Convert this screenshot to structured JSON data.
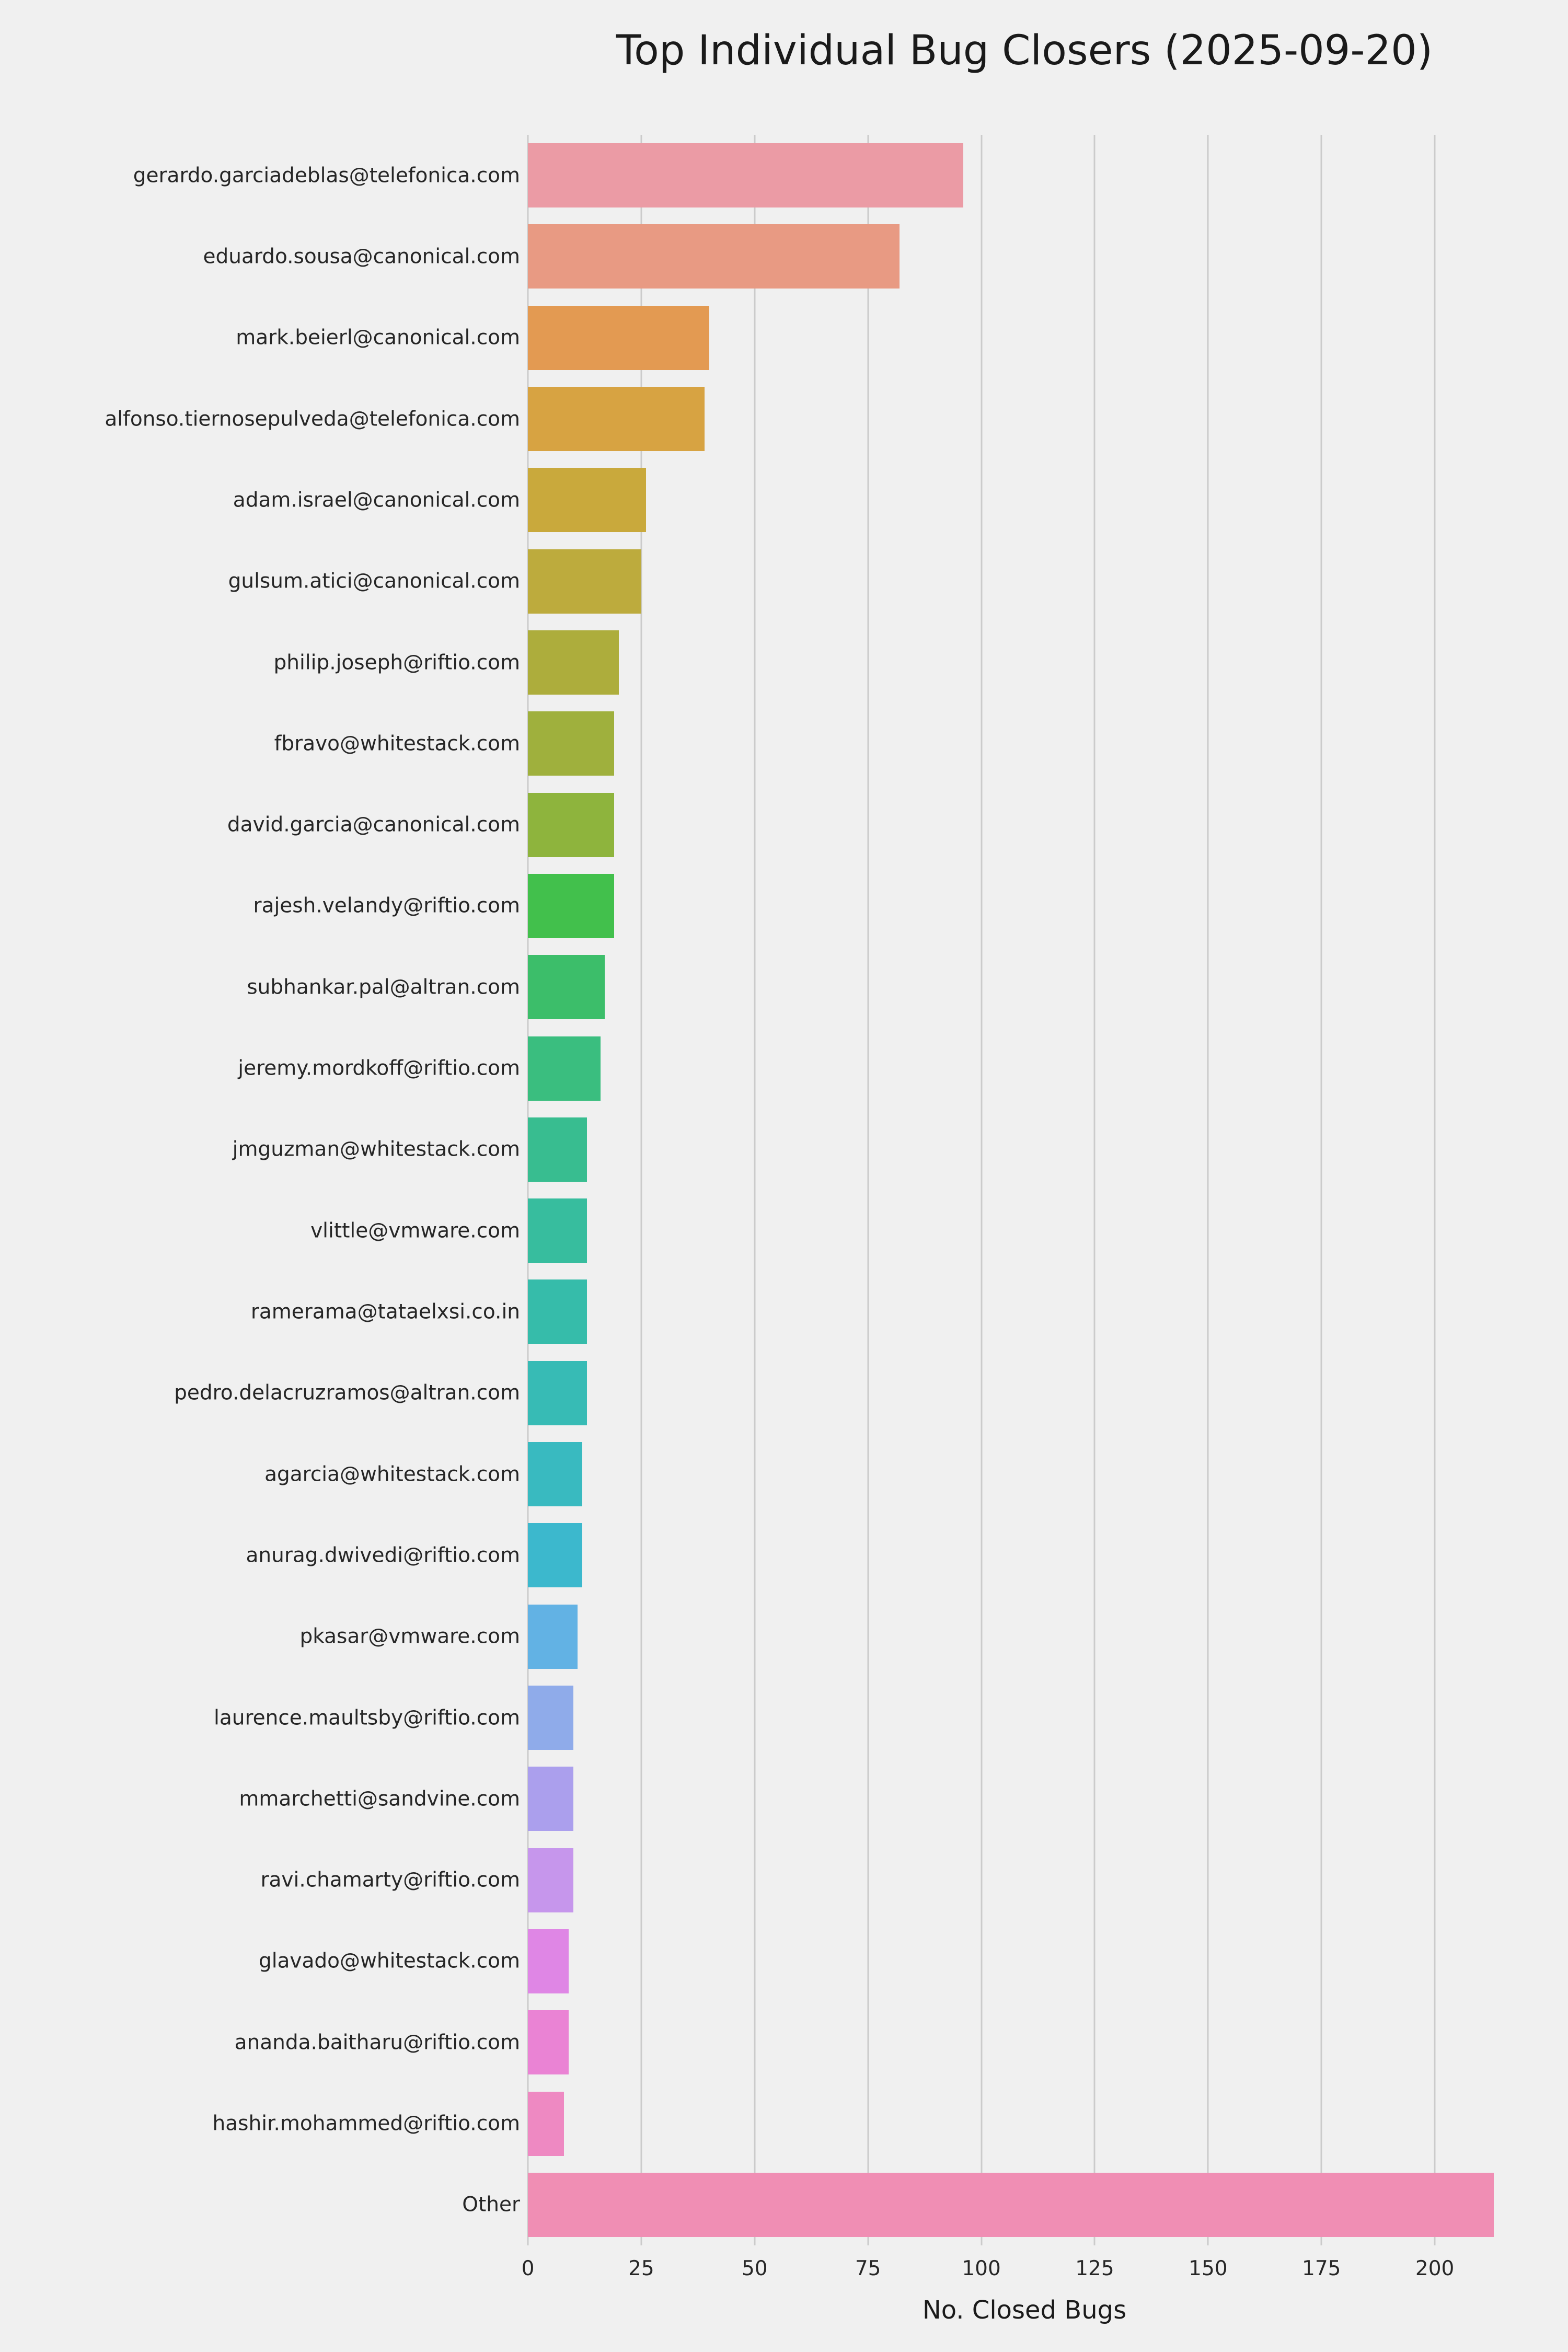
{
  "chart_data": {
    "type": "bar",
    "orientation": "horizontal",
    "title": "Top Individual Bug Closers (2025-09-20)",
    "xlabel": "No. Closed Bugs",
    "ylabel": "",
    "xlim": [
      0,
      219
    ],
    "x_ticks": [
      0,
      25,
      50,
      75,
      100,
      125,
      150,
      175,
      200
    ],
    "grid": true,
    "legend": false,
    "background_color": "#f0f0f0",
    "gridline_color": "#cbcbcb",
    "categories": [
      "gerardo.garciadeblas@telefonica.com",
      "eduardo.sousa@canonical.com",
      "mark.beierl@canonical.com",
      "alfonso.tiernosepulveda@telefonica.com",
      "adam.israel@canonical.com",
      "gulsum.atici@canonical.com",
      "philip.joseph@riftio.com",
      "fbravo@whitestack.com",
      "david.garcia@canonical.com",
      "rajesh.velandy@riftio.com",
      "subhankar.pal@altran.com",
      "jeremy.mordkoff@riftio.com",
      "jmguzman@whitestack.com",
      "vlittle@vmware.com",
      "ramerama@tataelxsi.co.in",
      "pedro.delacruzramos@altran.com",
      "agarcia@whitestack.com",
      "anurag.dwivedi@riftio.com",
      "pkasar@vmware.com",
      "laurence.maultsby@riftio.com",
      "mmarchetti@sandvine.com",
      "ravi.chamarty@riftio.com",
      "glavado@whitestack.com",
      "ananda.baitharu@riftio.com",
      "hashir.mohammed@riftio.com",
      "Other"
    ],
    "values": [
      96,
      82,
      40,
      39,
      26,
      25,
      20,
      19,
      19,
      19,
      17,
      16,
      13,
      13,
      13,
      13,
      12,
      12,
      11,
      10,
      10,
      10,
      9,
      9,
      8,
      213
    ],
    "colors": [
      "#eb9ba5",
      "#e89a83",
      "#e39a52",
      "#d7a342",
      "#c9a93c",
      "#bdab3d",
      "#adad3c",
      "#9fb03d",
      "#8eb43d",
      "#42c04c",
      "#3cbe6a",
      "#3abe7f",
      "#38bd90",
      "#37bd9e",
      "#36bcaa",
      "#37bbb5",
      "#39bac0",
      "#3cb8cd",
      "#62b2e4",
      "#8fabea",
      "#ab9fed",
      "#c696ec",
      "#df86e5",
      "#ea83d4",
      "#ee89c2",
      "#f08eb4"
    ]
  }
}
